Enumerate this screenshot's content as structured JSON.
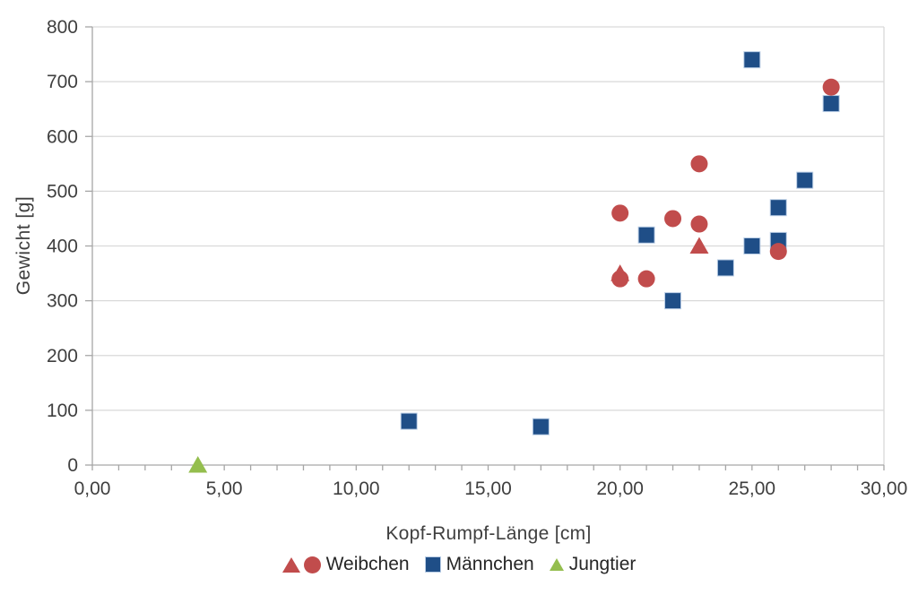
{
  "chart_data": {
    "type": "scatter",
    "title": "",
    "xlabel": "Kopf-Rumpf-Länge [cm]",
    "ylabel": "Gewicht [g]",
    "xlim": [
      0,
      30
    ],
    "ylim": [
      0,
      800
    ],
    "grid": "horizontal",
    "legend_position": "bottom",
    "axis_color": "#A6A6A6",
    "grid_color": "#D9D9D9",
    "text_color": "#3F3F3F",
    "x_minor_tick_step": 1,
    "x_ticks": [
      {
        "value": 0,
        "label": "0,00"
      },
      {
        "value": 5,
        "label": "5,00"
      },
      {
        "value": 10,
        "label": "10,00"
      },
      {
        "value": 15,
        "label": "15,00"
      },
      {
        "value": 20,
        "label": "20,00"
      },
      {
        "value": 25,
        "label": "25,00"
      },
      {
        "value": 30,
        "label": "30,00"
      }
    ],
    "y_ticks": [
      {
        "value": 0,
        "label": "0"
      },
      {
        "value": 100,
        "label": "100"
      },
      {
        "value": 200,
        "label": "200"
      },
      {
        "value": 300,
        "label": "300"
      },
      {
        "value": 400,
        "label": "400"
      },
      {
        "value": 500,
        "label": "500"
      },
      {
        "value": 600,
        "label": "600"
      },
      {
        "value": 700,
        "label": "700"
      },
      {
        "value": 800,
        "label": "800"
      }
    ],
    "series": [
      {
        "name": "Männchen",
        "marker": "square",
        "color": "#1F4E87",
        "marker_border": "#B9CDE5",
        "points": [
          [
            12,
            80
          ],
          [
            17,
            70
          ],
          [
            21,
            420
          ],
          [
            22,
            300
          ],
          [
            24,
            360
          ],
          [
            25,
            400
          ],
          [
            25,
            740
          ],
          [
            26,
            410
          ],
          [
            26,
            470
          ],
          [
            27,
            520
          ],
          [
            28,
            660
          ]
        ]
      },
      {
        "name": "Weibchen",
        "marker": "triangle",
        "color": "#C14C4C",
        "points": [
          [
            20,
            350
          ],
          [
            23,
            400
          ]
        ]
      },
      {
        "name": "Weibchen",
        "marker": "circle",
        "color": "#C14C4C",
        "points": [
          [
            20,
            340
          ],
          [
            20,
            460
          ],
          [
            21,
            340
          ],
          [
            22,
            450
          ],
          [
            23,
            440
          ],
          [
            23,
            550
          ],
          [
            26,
            390
          ],
          [
            28,
            690
          ]
        ]
      },
      {
        "name": "Jungtier",
        "marker": "triangle",
        "color": "#94BE4E",
        "points": [
          [
            4,
            0
          ]
        ]
      }
    ],
    "legend": [
      {
        "label": "Weibchen",
        "markers": [
          "triangle",
          "circle"
        ],
        "color": "#C14C4C"
      },
      {
        "label": "Männchen",
        "markers": [
          "square"
        ],
        "color": "#1F4E87"
      },
      {
        "label": "Jungtier",
        "markers": [
          "triangle"
        ],
        "color": "#94BE4E"
      }
    ]
  }
}
